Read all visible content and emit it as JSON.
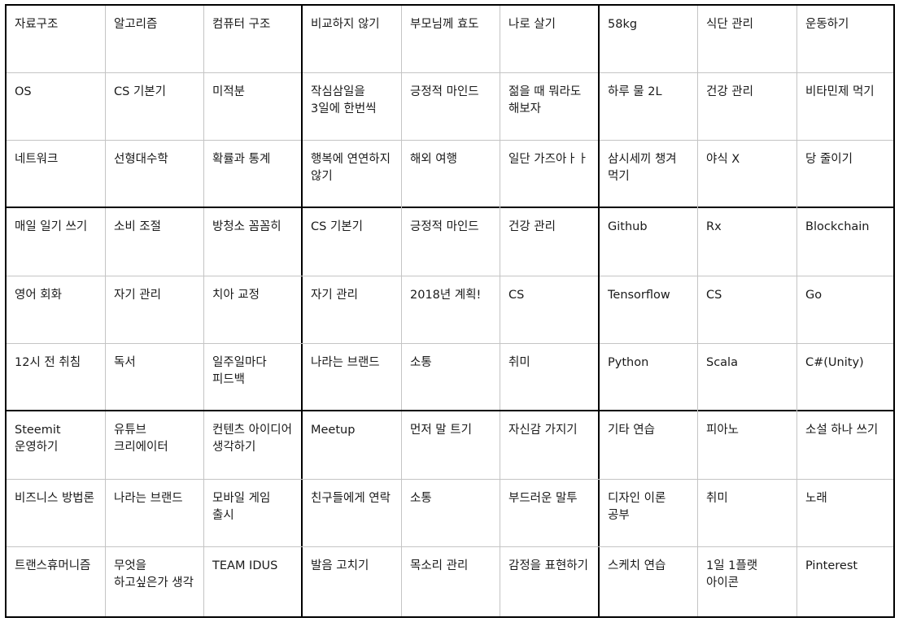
{
  "mandalart": {
    "rows": [
      [
        "자료구조",
        "알고리즘",
        "컴퓨터 구조",
        "비교하지 않기",
        "부모님께 효도",
        "나로 살기",
        "58kg",
        "식단 관리",
        "운동하기"
      ],
      [
        "OS",
        "CS 기본기",
        "미적분",
        "작심삼일을 3일에 한번씩",
        "긍정적 마인드",
        "젊을 때 뭐라도 해보자",
        "하루 물 2L",
        "건강 관리",
        "비타민제 먹기"
      ],
      [
        "네트워크",
        "선형대수학",
        "확률과 통계",
        "행복에 연연하지 않기",
        "해외 여행",
        "일단 가즈아ㅏㅏ",
        "삼시세끼 챙겨 먹기",
        "야식 X",
        "당 줄이기"
      ],
      [
        "매일 일기 쓰기",
        "소비 조절",
        "방청소 꼼꼼히",
        "CS 기본기",
        "긍정적 마인드",
        "건강 관리",
        "Github",
        "Rx",
        "Blockchain"
      ],
      [
        "영어 회화",
        "자기 관리",
        "치아 교정",
        "자기 관리",
        "2018년 계획!",
        "CS",
        "Tensorflow",
        "CS",
        "Go"
      ],
      [
        "12시 전 취침",
        "독서",
        "일주일마다 피드백",
        "나라는 브랜드",
        "소통",
        "취미",
        "Python",
        "Scala",
        "C#(Unity)"
      ],
      [
        "Steemit 운영하기",
        "유튜브 크리에이터",
        "컨텐츠 아이디어 생각하기",
        "Meetup",
        "먼저 말 트기",
        "자신감 가지기",
        "기타 연습",
        "피아노",
        "소설 하나 쓰기"
      ],
      [
        "비즈니스 방법론",
        "나라는 브랜드",
        "모바일 게임 출시",
        "친구들에게 연락",
        "소통",
        "부드러운 말투",
        "디자인 이론 공부",
        "취미",
        "노래"
      ],
      [
        "트랜스휴머니즘",
        "무엇을 하고싶은가 생각",
        "TEAM IDUS",
        "발음 고치기",
        "목소리 관리",
        "감정을 표현하기",
        "스케치 연습",
        "1일 1플랫 아이콘",
        "Pinterest"
      ]
    ]
  }
}
